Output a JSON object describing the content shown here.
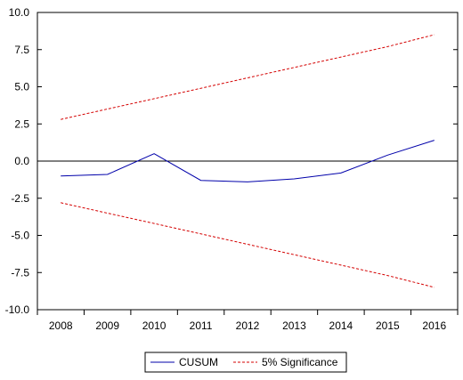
{
  "chart_data": {
    "type": "line",
    "title": "",
    "xlabel": "",
    "ylabel": "",
    "x": [
      2008,
      2009,
      2010,
      2011,
      2012,
      2013,
      2014,
      2015,
      2016
    ],
    "xlim": [
      2007.5,
      2016.5
    ],
    "ylim": [
      -10.0,
      10.0
    ],
    "yticks": [
      "10.0",
      "7.5",
      "5.0",
      "2.5",
      "0.0",
      "-2.5",
      "-5.0",
      "-7.5",
      "-10.0"
    ],
    "ytick_values": [
      10,
      7.5,
      5,
      2.5,
      0,
      -2.5,
      -5,
      -7.5,
      -10
    ],
    "xticks": [
      "2008",
      "2009",
      "2010",
      "2011",
      "2012",
      "2013",
      "2014",
      "2015",
      "2016"
    ],
    "zero_line": true,
    "grid": false,
    "legend_position": "bottom-center",
    "series": [
      {
        "name": "CUSUM",
        "color": "#0000aa",
        "style": "solid",
        "values": [
          -1.0,
          -0.9,
          0.5,
          -1.3,
          -1.4,
          -1.2,
          -0.8,
          0.4,
          1.4
        ]
      },
      {
        "name": "5% Significance",
        "color": "#d40000",
        "style": "dashed",
        "values": [
          2.8,
          3.5,
          4.2,
          4.9,
          5.6,
          6.3,
          7.0,
          7.7,
          8.5
        ]
      },
      {
        "name": "",
        "color": "#d40000",
        "style": "dashed",
        "values": [
          -2.8,
          -3.5,
          -4.2,
          -4.9,
          -5.6,
          -6.3,
          -7.0,
          -7.7,
          -8.5
        ]
      }
    ]
  }
}
